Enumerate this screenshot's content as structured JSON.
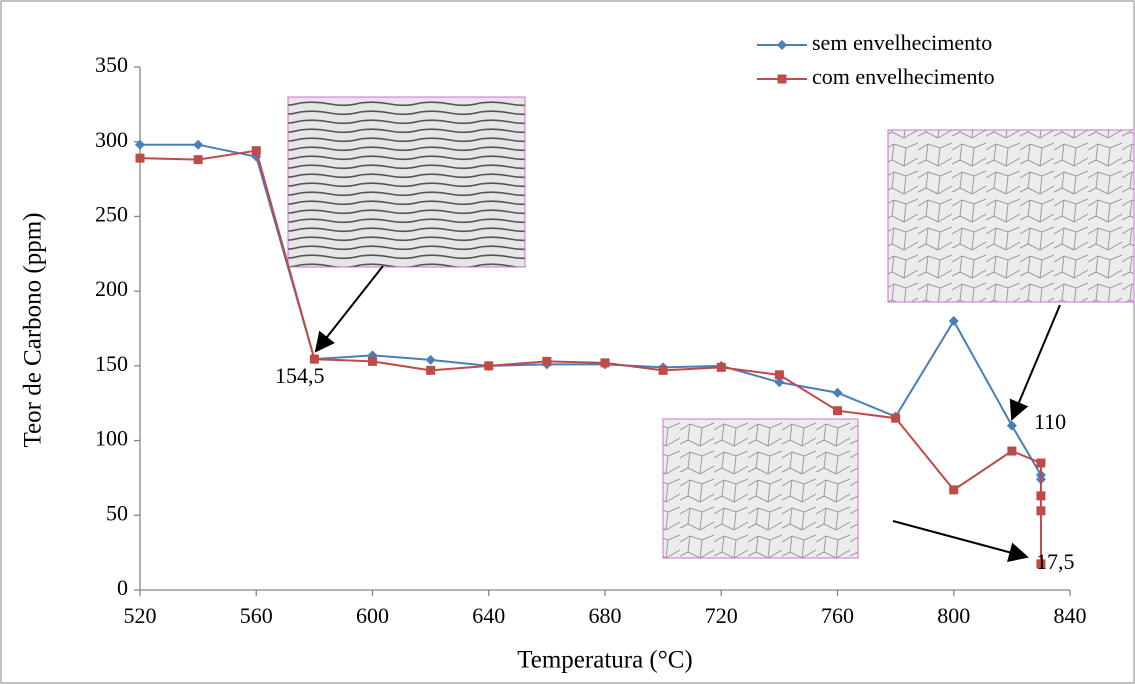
{
  "chart_data": {
    "type": "line",
    "x_label": "Temperatura (°C)",
    "y_label": "Teor de Carbono (ppm)",
    "xlim": [
      520,
      840
    ],
    "xticks": [
      520,
      560,
      600,
      640,
      680,
      720,
      760,
      800,
      840
    ],
    "ylim": [
      0,
      350
    ],
    "yticks": [
      0,
      50,
      100,
      150,
      200,
      250,
      300,
      350
    ],
    "series": [
      {
        "name": "sem envelhecimento",
        "color": "#4a7ebb",
        "marker": "diamond",
        "x": [
          520,
          540,
          560,
          580,
          600,
          620,
          640,
          660,
          680,
          700,
          720,
          740,
          760,
          780,
          800,
          820,
          830,
          830
        ],
        "values": [
          298,
          298,
          290,
          154.5,
          157,
          154,
          150,
          151,
          151,
          149,
          150,
          139,
          132,
          116,
          180,
          110,
          77,
          74
        ]
      },
      {
        "name": "com envelhecimento",
        "color": "#be4b48",
        "marker": "square",
        "x": [
          520,
          540,
          560,
          580,
          600,
          620,
          640,
          660,
          680,
          700,
          720,
          740,
          760,
          780,
          800,
          820,
          830,
          830,
          830,
          830
        ],
        "values": [
          289,
          288,
          294,
          154.5,
          153,
          147,
          150,
          153,
          152,
          147,
          149,
          144,
          120,
          115,
          67,
          93,
          85,
          63,
          53,
          17.5
        ]
      }
    ],
    "annotations": [
      "154,5",
      "110",
      "17,5"
    ],
    "legend": "upper right"
  }
}
